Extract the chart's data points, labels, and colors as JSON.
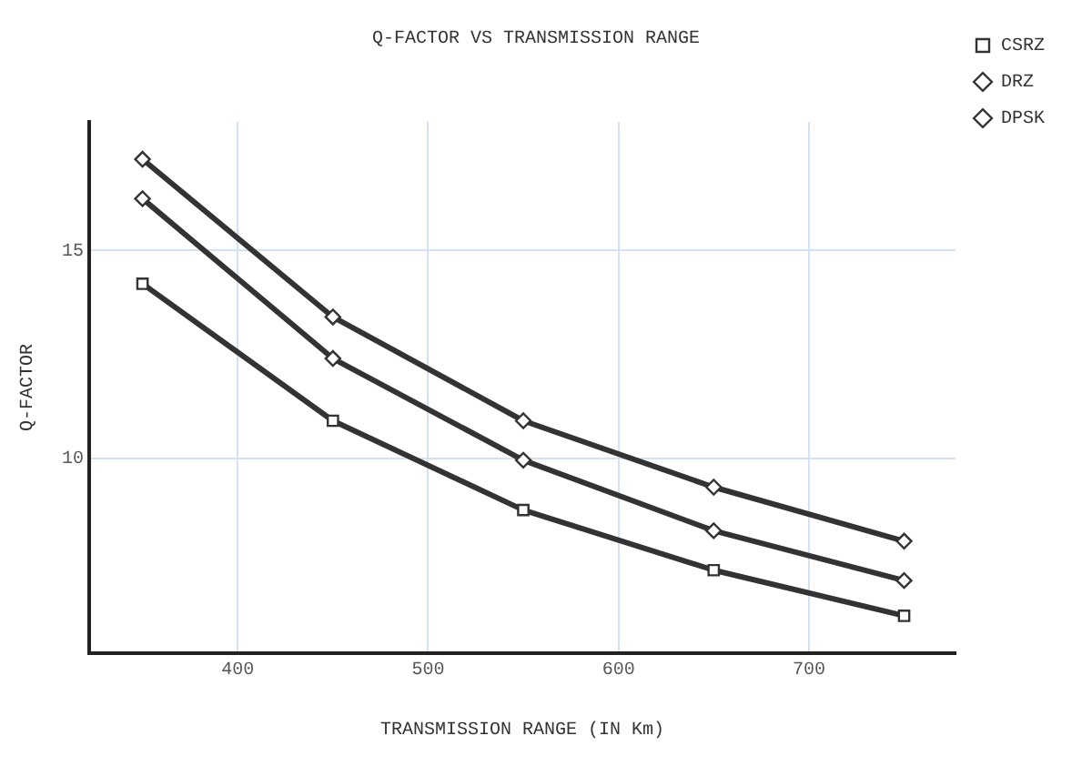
{
  "chart_data": {
    "type": "line",
    "title": "Q-FACTOR VS TRANSMISSION RANGE",
    "xlabel": "TRANSMISSION RANGE (IN Km)",
    "ylabel": "Q-FACTOR",
    "x": [
      350,
      450,
      550,
      650,
      750
    ],
    "series": [
      {
        "name": "CSRZ",
        "color": "#333333",
        "marker": "square",
        "values": [
          14.2,
          10.9,
          8.75,
          7.3,
          6.2
        ]
      },
      {
        "name": "DRZ",
        "color": "#333333",
        "marker": "diamond",
        "values": [
          16.25,
          12.4,
          9.95,
          8.25,
          7.05
        ]
      },
      {
        "name": "DPSK",
        "color": "#333333",
        "marker": "diamond",
        "values": [
          17.2,
          13.4,
          10.9,
          9.3,
          8.0
        ]
      }
    ],
    "xlim": [
      322,
      777
    ],
    "xticks": [
      400,
      500,
      600,
      700
    ],
    "ylim": [
      5.3,
      18.1
    ],
    "yticks": [
      10,
      15
    ],
    "grid": true,
    "legend": "top right",
    "line_style": "solid"
  }
}
